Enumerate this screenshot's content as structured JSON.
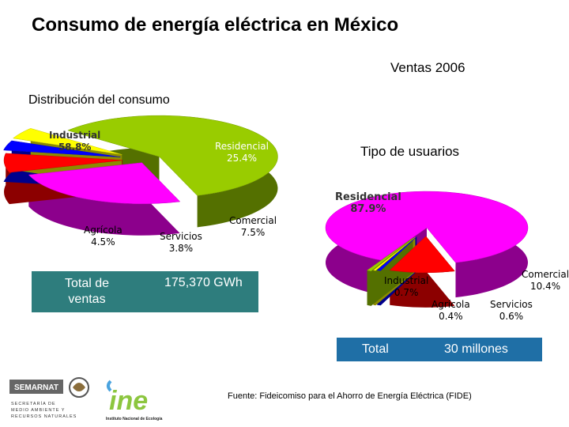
{
  "title": "Consumo de energía eléctrica en México",
  "subtitle": "Ventas 2006",
  "chart_data": [
    {
      "type": "pie",
      "title": "Distribución del consumo",
      "categories": [
        "Industrial",
        "Residencial",
        "Comercial",
        "Servicios",
        "Agrícola"
      ],
      "values": [
        58.8,
        25.4,
        7.5,
        3.8,
        4.5
      ],
      "labels": [
        "58.8%",
        "25.4%",
        "7.5%",
        "3.8%",
        "4.5%"
      ],
      "colors": [
        "#99cc00",
        "#ff00ff",
        "#ff0000",
        "#0000ff",
        "#ffff00"
      ],
      "total_label": "Total de ventas",
      "total_value": "175,370 GWh"
    },
    {
      "type": "pie",
      "title": "Tipo de usuarios",
      "categories": [
        "Residencial",
        "Comercial",
        "Servicios",
        "Agrícola",
        "Industrial"
      ],
      "values": [
        87.9,
        10.4,
        0.6,
        0.4,
        0.7
      ],
      "labels": [
        "87.9%",
        "10.4%",
        "0.6%",
        "0.4%",
        "0.7%"
      ],
      "colors": [
        "#ff00ff",
        "#ff0000",
        "#0000ff",
        "#ffff00",
        "#99cc00"
      ],
      "total_label": "Total",
      "total_value": "30 millones"
    }
  ],
  "source_note": "Fuente:   Fideicomiso para el Ahorro de Energía Eléctrica  (FIDE)",
  "logos": {
    "semarnat": "SEMARNAT",
    "semarnat_lines": [
      "SECRETARÍA DE",
      "MEDIO AMBIENTE Y",
      "RECURSOS NATURALES"
    ],
    "ine": "ine",
    "ine_caption": "Instituto Nacional de Ecología"
  }
}
